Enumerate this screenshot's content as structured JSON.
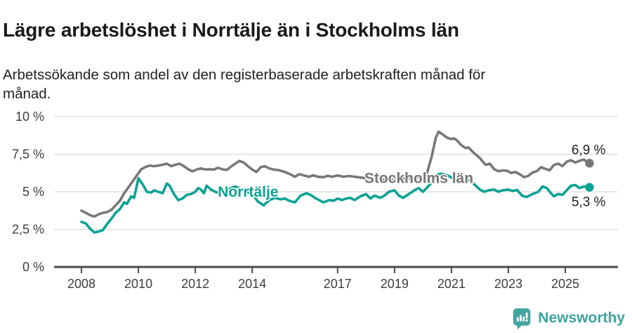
{
  "header": {
    "title": "Lägre arbetslöshet i Norrtälje än i Stockholms län",
    "subtitle": "Arbetssökande som andel av den registerbaserade arbetskraften månad för månad."
  },
  "chart_data": {
    "type": "line",
    "title": "Lägre arbetslöshet i Norrtälje än i Stockholms län",
    "subtitle": "Arbetssökande som andel av den registerbaserade arbetskraften månad för månad.",
    "x_unit": "year (monthly share of registered workforce)",
    "y_unit": "percent",
    "xlim": [
      2007.0,
      2026.9
    ],
    "ylim": [
      0,
      10
    ],
    "grid": "horizontal",
    "yticks": [
      {
        "value": 0,
        "label": "0 %"
      },
      {
        "value": 2.5,
        "label": "2,5 %"
      },
      {
        "value": 5,
        "label": "5 %"
      },
      {
        "value": 7.5,
        "label": "7,5 %"
      },
      {
        "value": 10,
        "label": "10 %"
      }
    ],
    "xticks": [
      {
        "value": 2008,
        "label": "2008"
      },
      {
        "value": 2010,
        "label": "2010"
      },
      {
        "value": 2012,
        "label": "2012"
      },
      {
        "value": 2014,
        "label": "2014"
      },
      {
        "value": 2017,
        "label": "2017"
      },
      {
        "value": 2019,
        "label": "2019"
      },
      {
        "value": 2021,
        "label": "2021"
      },
      {
        "value": 2023,
        "label": "2023"
      },
      {
        "value": 2025,
        "label": "2025"
      }
    ],
    "series": [
      {
        "name": "Stockholms län",
        "color": "#787878",
        "end_label": "6,9 %",
        "end_label_side": "above",
        "label_at": {
          "year": 2017.94,
          "pct": 5.9
        },
        "points": [
          [
            2008.0,
            3.75
          ],
          [
            2008.15,
            3.6
          ],
          [
            2008.3,
            3.45
          ],
          [
            2008.45,
            3.35
          ],
          [
            2008.6,
            3.5
          ],
          [
            2008.75,
            3.6
          ],
          [
            2008.9,
            3.65
          ],
          [
            2009.05,
            3.8
          ],
          [
            2009.2,
            4.1
          ],
          [
            2009.35,
            4.4
          ],
          [
            2009.5,
            4.9
          ],
          [
            2009.65,
            5.3
          ],
          [
            2009.8,
            5.7
          ],
          [
            2009.95,
            6.1
          ],
          [
            2010.1,
            6.5
          ],
          [
            2010.25,
            6.65
          ],
          [
            2010.4,
            6.75
          ],
          [
            2010.55,
            6.7
          ],
          [
            2010.7,
            6.75
          ],
          [
            2010.85,
            6.8
          ],
          [
            2011.0,
            6.87
          ],
          [
            2011.15,
            6.7
          ],
          [
            2011.3,
            6.8
          ],
          [
            2011.45,
            6.87
          ],
          [
            2011.6,
            6.7
          ],
          [
            2011.75,
            6.5
          ],
          [
            2011.9,
            6.36
          ],
          [
            2012.05,
            6.48
          ],
          [
            2012.2,
            6.56
          ],
          [
            2012.35,
            6.48
          ],
          [
            2012.5,
            6.5
          ],
          [
            2012.65,
            6.48
          ],
          [
            2012.8,
            6.6
          ],
          [
            2012.95,
            6.5
          ],
          [
            2013.1,
            6.45
          ],
          [
            2013.25,
            6.67
          ],
          [
            2013.4,
            6.87
          ],
          [
            2013.55,
            7.05
          ],
          [
            2013.7,
            6.95
          ],
          [
            2013.85,
            6.7
          ],
          [
            2014.0,
            6.48
          ],
          [
            2014.15,
            6.32
          ],
          [
            2014.3,
            6.64
          ],
          [
            2014.45,
            6.7
          ],
          [
            2014.6,
            6.55
          ],
          [
            2014.75,
            6.48
          ],
          [
            2014.9,
            6.45
          ],
          [
            2015.1,
            6.35
          ],
          [
            2015.3,
            6.2
          ],
          [
            2015.5,
            6.0
          ],
          [
            2015.65,
            6.17
          ],
          [
            2015.8,
            6.1
          ],
          [
            2016.0,
            6.0
          ],
          [
            2016.15,
            6.1
          ],
          [
            2016.3,
            6.0
          ],
          [
            2016.5,
            5.97
          ],
          [
            2016.65,
            6.06
          ],
          [
            2016.8,
            6.0
          ],
          [
            2017.0,
            6.09
          ],
          [
            2017.2,
            6.0
          ],
          [
            2017.4,
            6.05
          ],
          [
            2017.6,
            6.0
          ],
          [
            2017.8,
            5.95
          ],
          [
            2018.0,
            5.9
          ],
          [
            2018.25,
            5.85
          ],
          [
            2018.5,
            5.8
          ],
          [
            2018.75,
            5.78
          ],
          [
            2019.0,
            5.8
          ],
          [
            2019.25,
            5.85
          ],
          [
            2019.5,
            5.9
          ],
          [
            2019.75,
            5.95
          ],
          [
            2020.0,
            6.0
          ],
          [
            2020.15,
            6.3
          ],
          [
            2020.3,
            7.3
          ],
          [
            2020.45,
            8.6
          ],
          [
            2020.55,
            9.0
          ],
          [
            2020.7,
            8.8
          ],
          [
            2020.85,
            8.6
          ],
          [
            2021.0,
            8.5
          ],
          [
            2021.1,
            8.55
          ],
          [
            2021.2,
            8.4
          ],
          [
            2021.35,
            8.1
          ],
          [
            2021.5,
            7.9
          ],
          [
            2021.6,
            7.95
          ],
          [
            2021.75,
            7.65
          ],
          [
            2021.9,
            7.4
          ],
          [
            2022.0,
            7.25
          ],
          [
            2022.1,
            7.0
          ],
          [
            2022.2,
            6.8
          ],
          [
            2022.35,
            6.87
          ],
          [
            2022.5,
            6.5
          ],
          [
            2022.65,
            6.37
          ],
          [
            2022.8,
            6.42
          ],
          [
            2022.95,
            6.4
          ],
          [
            2023.1,
            6.25
          ],
          [
            2023.25,
            6.32
          ],
          [
            2023.4,
            6.17
          ],
          [
            2023.55,
            5.97
          ],
          [
            2023.7,
            6.06
          ],
          [
            2023.85,
            6.28
          ],
          [
            2024.0,
            6.37
          ],
          [
            2024.15,
            6.64
          ],
          [
            2024.3,
            6.53
          ],
          [
            2024.45,
            6.43
          ],
          [
            2024.6,
            6.79
          ],
          [
            2024.75,
            6.87
          ],
          [
            2024.9,
            6.71
          ],
          [
            2025.05,
            7.0
          ],
          [
            2025.2,
            7.1
          ],
          [
            2025.35,
            6.95
          ],
          [
            2025.5,
            7.06
          ],
          [
            2025.65,
            7.15
          ],
          [
            2025.75,
            7.0
          ],
          [
            2025.85,
            6.9
          ]
        ]
      },
      {
        "name": "Norrtälje",
        "color": "#0ca294",
        "end_label": "5,3 %",
        "end_label_side": "below",
        "label_at": {
          "year": 2012.79,
          "pct": 5.0
        },
        "points": [
          [
            2008.0,
            3.0
          ],
          [
            2008.15,
            2.9
          ],
          [
            2008.3,
            2.55
          ],
          [
            2008.45,
            2.3
          ],
          [
            2008.6,
            2.35
          ],
          [
            2008.75,
            2.45
          ],
          [
            2008.9,
            2.85
          ],
          [
            2009.05,
            3.2
          ],
          [
            2009.2,
            3.6
          ],
          [
            2009.35,
            3.85
          ],
          [
            2009.5,
            4.3
          ],
          [
            2009.6,
            4.2
          ],
          [
            2009.75,
            4.7
          ],
          [
            2009.85,
            4.6
          ],
          [
            2010.0,
            5.9
          ],
          [
            2010.15,
            5.5
          ],
          [
            2010.3,
            5.0
          ],
          [
            2010.45,
            4.95
          ],
          [
            2010.55,
            5.1
          ],
          [
            2010.7,
            5.0
          ],
          [
            2010.85,
            4.9
          ],
          [
            2011.0,
            5.55
          ],
          [
            2011.1,
            5.4
          ],
          [
            2011.25,
            4.85
          ],
          [
            2011.4,
            4.45
          ],
          [
            2011.55,
            4.55
          ],
          [
            2011.7,
            4.8
          ],
          [
            2011.85,
            4.85
          ],
          [
            2012.0,
            5.0
          ],
          [
            2012.1,
            5.25
          ],
          [
            2012.2,
            5.15
          ],
          [
            2012.3,
            4.9
          ],
          [
            2012.4,
            5.4
          ],
          [
            2012.55,
            5.15
          ],
          [
            2012.7,
            5.0
          ],
          [
            2012.85,
            4.9
          ],
          [
            2013.0,
            5.0
          ],
          [
            2013.2,
            5.2
          ],
          [
            2013.4,
            5.35
          ],
          [
            2013.6,
            5.2
          ],
          [
            2013.8,
            5.0
          ],
          [
            2014.0,
            4.85
          ],
          [
            2014.2,
            4.35
          ],
          [
            2014.4,
            4.1
          ],
          [
            2014.6,
            4.45
          ],
          [
            2014.8,
            4.6
          ],
          [
            2015.0,
            4.5
          ],
          [
            2015.15,
            4.55
          ],
          [
            2015.3,
            4.4
          ],
          [
            2015.5,
            4.3
          ],
          [
            2015.7,
            4.75
          ],
          [
            2015.9,
            4.9
          ],
          [
            2016.05,
            4.8
          ],
          [
            2016.2,
            4.6
          ],
          [
            2016.35,
            4.45
          ],
          [
            2016.5,
            4.3
          ],
          [
            2016.7,
            4.45
          ],
          [
            2016.85,
            4.4
          ],
          [
            2017.0,
            4.55
          ],
          [
            2017.15,
            4.45
          ],
          [
            2017.3,
            4.55
          ],
          [
            2017.45,
            4.6
          ],
          [
            2017.6,
            4.45
          ],
          [
            2017.8,
            4.7
          ],
          [
            2018.0,
            4.85
          ],
          [
            2018.15,
            4.55
          ],
          [
            2018.3,
            4.75
          ],
          [
            2018.5,
            4.6
          ],
          [
            2018.65,
            4.75
          ],
          [
            2018.8,
            5.0
          ],
          [
            2019.0,
            5.1
          ],
          [
            2019.15,
            4.75
          ],
          [
            2019.3,
            4.6
          ],
          [
            2019.5,
            4.85
          ],
          [
            2019.7,
            5.1
          ],
          [
            2019.85,
            5.25
          ],
          [
            2020.0,
            5.0
          ],
          [
            2020.15,
            5.3
          ],
          [
            2020.3,
            5.6
          ],
          [
            2020.5,
            6.15
          ],
          [
            2020.65,
            6.2
          ],
          [
            2020.85,
            6.1
          ],
          [
            2021.0,
            5.95
          ],
          [
            2021.2,
            5.8
          ],
          [
            2021.4,
            5.75
          ],
          [
            2021.5,
            5.8
          ],
          [
            2021.65,
            5.75
          ],
          [
            2021.8,
            5.5
          ],
          [
            2022.0,
            5.15
          ],
          [
            2022.15,
            5.0
          ],
          [
            2022.3,
            5.1
          ],
          [
            2022.5,
            5.15
          ],
          [
            2022.65,
            5.0
          ],
          [
            2022.8,
            5.1
          ],
          [
            2023.0,
            5.15
          ],
          [
            2023.15,
            5.05
          ],
          [
            2023.3,
            5.12
          ],
          [
            2023.5,
            4.72
          ],
          [
            2023.65,
            4.66
          ],
          [
            2023.85,
            4.85
          ],
          [
            2024.05,
            5.0
          ],
          [
            2024.2,
            5.35
          ],
          [
            2024.35,
            5.25
          ],
          [
            2024.5,
            4.9
          ],
          [
            2024.6,
            4.7
          ],
          [
            2024.75,
            4.85
          ],
          [
            2024.9,
            4.8
          ],
          [
            2025.05,
            5.1
          ],
          [
            2025.2,
            5.4
          ],
          [
            2025.35,
            5.45
          ],
          [
            2025.5,
            5.25
          ],
          [
            2025.65,
            5.35
          ],
          [
            2025.85,
            5.3
          ]
        ]
      }
    ],
    "legend_position": "inline-labels",
    "colors": {
      "grid": "#dcdcdc",
      "axis": "#4a4a4a",
      "tick_text": "#3d3d3d",
      "stockholm_gray": "#787878",
      "norrtalje_teal": "#0ca294"
    }
  },
  "footer": {
    "brand": "Newsworthy",
    "logo_icon": "speech-bubble-bar-chart-icon",
    "brand_color": "#3ea39d",
    "logo_fill": "#44a5a0"
  }
}
